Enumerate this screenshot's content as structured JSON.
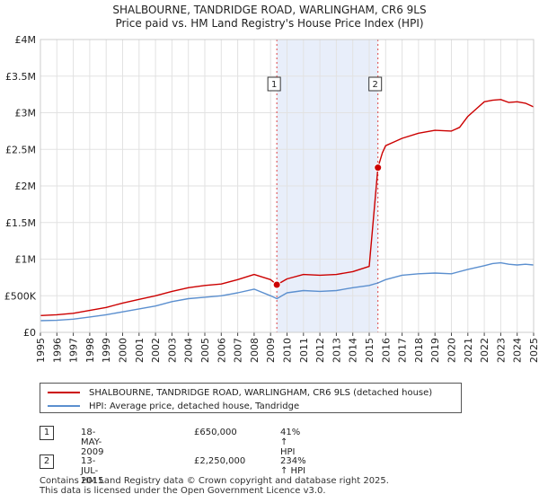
{
  "chart_data": {
    "type": "line",
    "title": "SHALBOURNE, TANDRIDGE ROAD, WARLINGHAM, CR6 9LS",
    "subtitle": "Price paid vs. HM Land Registry's House Price Index (HPI)",
    "xlabel": "",
    "ylabel": "",
    "xlim": [
      1995,
      2025
    ],
    "ylim": [
      0,
      4000000
    ],
    "x_ticks": [
      "1995",
      "1996",
      "1997",
      "1998",
      "1999",
      "2000",
      "2001",
      "2002",
      "2003",
      "2004",
      "2005",
      "2006",
      "2007",
      "2008",
      "2009",
      "2010",
      "2011",
      "2012",
      "2013",
      "2014",
      "2015",
      "2016",
      "2017",
      "2018",
      "2019",
      "2020",
      "2021",
      "2022",
      "2023",
      "2024",
      "2025"
    ],
    "y_ticks": [
      {
        "value": 0,
        "label": "£0"
      },
      {
        "value": 500000,
        "label": "£500K"
      },
      {
        "value": 1000000,
        "label": "£1M"
      },
      {
        "value": 1500000,
        "label": "£1.5M"
      },
      {
        "value": 2000000,
        "label": "£2M"
      },
      {
        "value": 2500000,
        "label": "£2.5M"
      },
      {
        "value": 3000000,
        "label": "£3M"
      },
      {
        "value": 3500000,
        "label": "£3.5M"
      },
      {
        "value": 4000000,
        "label": "£4M"
      }
    ],
    "grid": true,
    "series": [
      {
        "name": "SHALBOURNE, TANDRIDGE ROAD, WARLINGHAM, CR6 9LS (detached house)",
        "color": "#cc0000",
        "x": [
          1995,
          1996,
          1997,
          1998,
          1999,
          2000,
          2001,
          2002,
          2003,
          2004,
          2005,
          2006,
          2007,
          2008,
          2009.0,
          2009.38,
          2010,
          2011,
          2012,
          2013,
          2014,
          2015.0,
          2015.53,
          2015.8,
          2016,
          2016.5,
          2017,
          2018,
          2019,
          2020,
          2020.5,
          2021,
          2021.5,
          2022,
          2022.5,
          2023,
          2023.5,
          2024,
          2024.5,
          2025
        ],
        "y": [
          230000,
          240000,
          260000,
          300000,
          340000,
          400000,
          450000,
          500000,
          560000,
          610000,
          640000,
          660000,
          720000,
          790000,
          720000,
          650000,
          730000,
          790000,
          780000,
          790000,
          830000,
          900000,
          2250000,
          2450000,
          2550000,
          2600000,
          2650000,
          2720000,
          2760000,
          2750000,
          2800000,
          2950000,
          3050000,
          3150000,
          3170000,
          3180000,
          3140000,
          3150000,
          3130000,
          3080000
        ]
      },
      {
        "name": "HPI: Average price, detached house, Tandridge",
        "color": "#5b8fcf",
        "x": [
          1995,
          1996,
          1997,
          1998,
          1999,
          2000,
          2001,
          2002,
          2003,
          2004,
          2005,
          2006,
          2007,
          2008,
          2009.0,
          2009.38,
          2010,
          2011,
          2012,
          2013,
          2014,
          2015.0,
          2015.53,
          2016,
          2017,
          2018,
          2019,
          2020,
          2021,
          2022,
          2022.5,
          2023,
          2023.5,
          2024,
          2024.5,
          2025
        ],
        "y": [
          160000,
          165000,
          180000,
          210000,
          240000,
          280000,
          320000,
          360000,
          420000,
          460000,
          480000,
          500000,
          540000,
          590000,
          500000,
          460000,
          540000,
          570000,
          560000,
          570000,
          610000,
          640000,
          675000,
          720000,
          780000,
          800000,
          810000,
          800000,
          860000,
          910000,
          940000,
          950000,
          930000,
          920000,
          930000,
          920000
        ]
      }
    ],
    "annotations": [
      {
        "label": "1",
        "x": 2009.38,
        "y": 650000,
        "span": [
          2009.38,
          2015.53
        ]
      },
      {
        "label": "2",
        "x": 2015.53,
        "y": 2250000
      }
    ],
    "legend_position": "bottom"
  },
  "legend": {
    "property_label": "SHALBOURNE, TANDRIDGE ROAD, WARLINGHAM, CR6 9LS (detached house)",
    "hpi_label": "HPI: Average price, detached house, Tandridge",
    "property_color": "#cc0000",
    "hpi_color": "#5b8fcf"
  },
  "transactions": [
    {
      "id": "1",
      "date": "18-MAY-2009",
      "price": "£650,000",
      "hpi": "41% ↑ HPI"
    },
    {
      "id": "2",
      "date": "13-JUL-2015",
      "price": "£2,250,000",
      "hpi": "234% ↑ HPI"
    }
  ],
  "footer": {
    "line1": "Contains HM Land Registry data © Crown copyright and database right 2025.",
    "line2": "This data is licensed under the Open Government Licence v3.0."
  }
}
